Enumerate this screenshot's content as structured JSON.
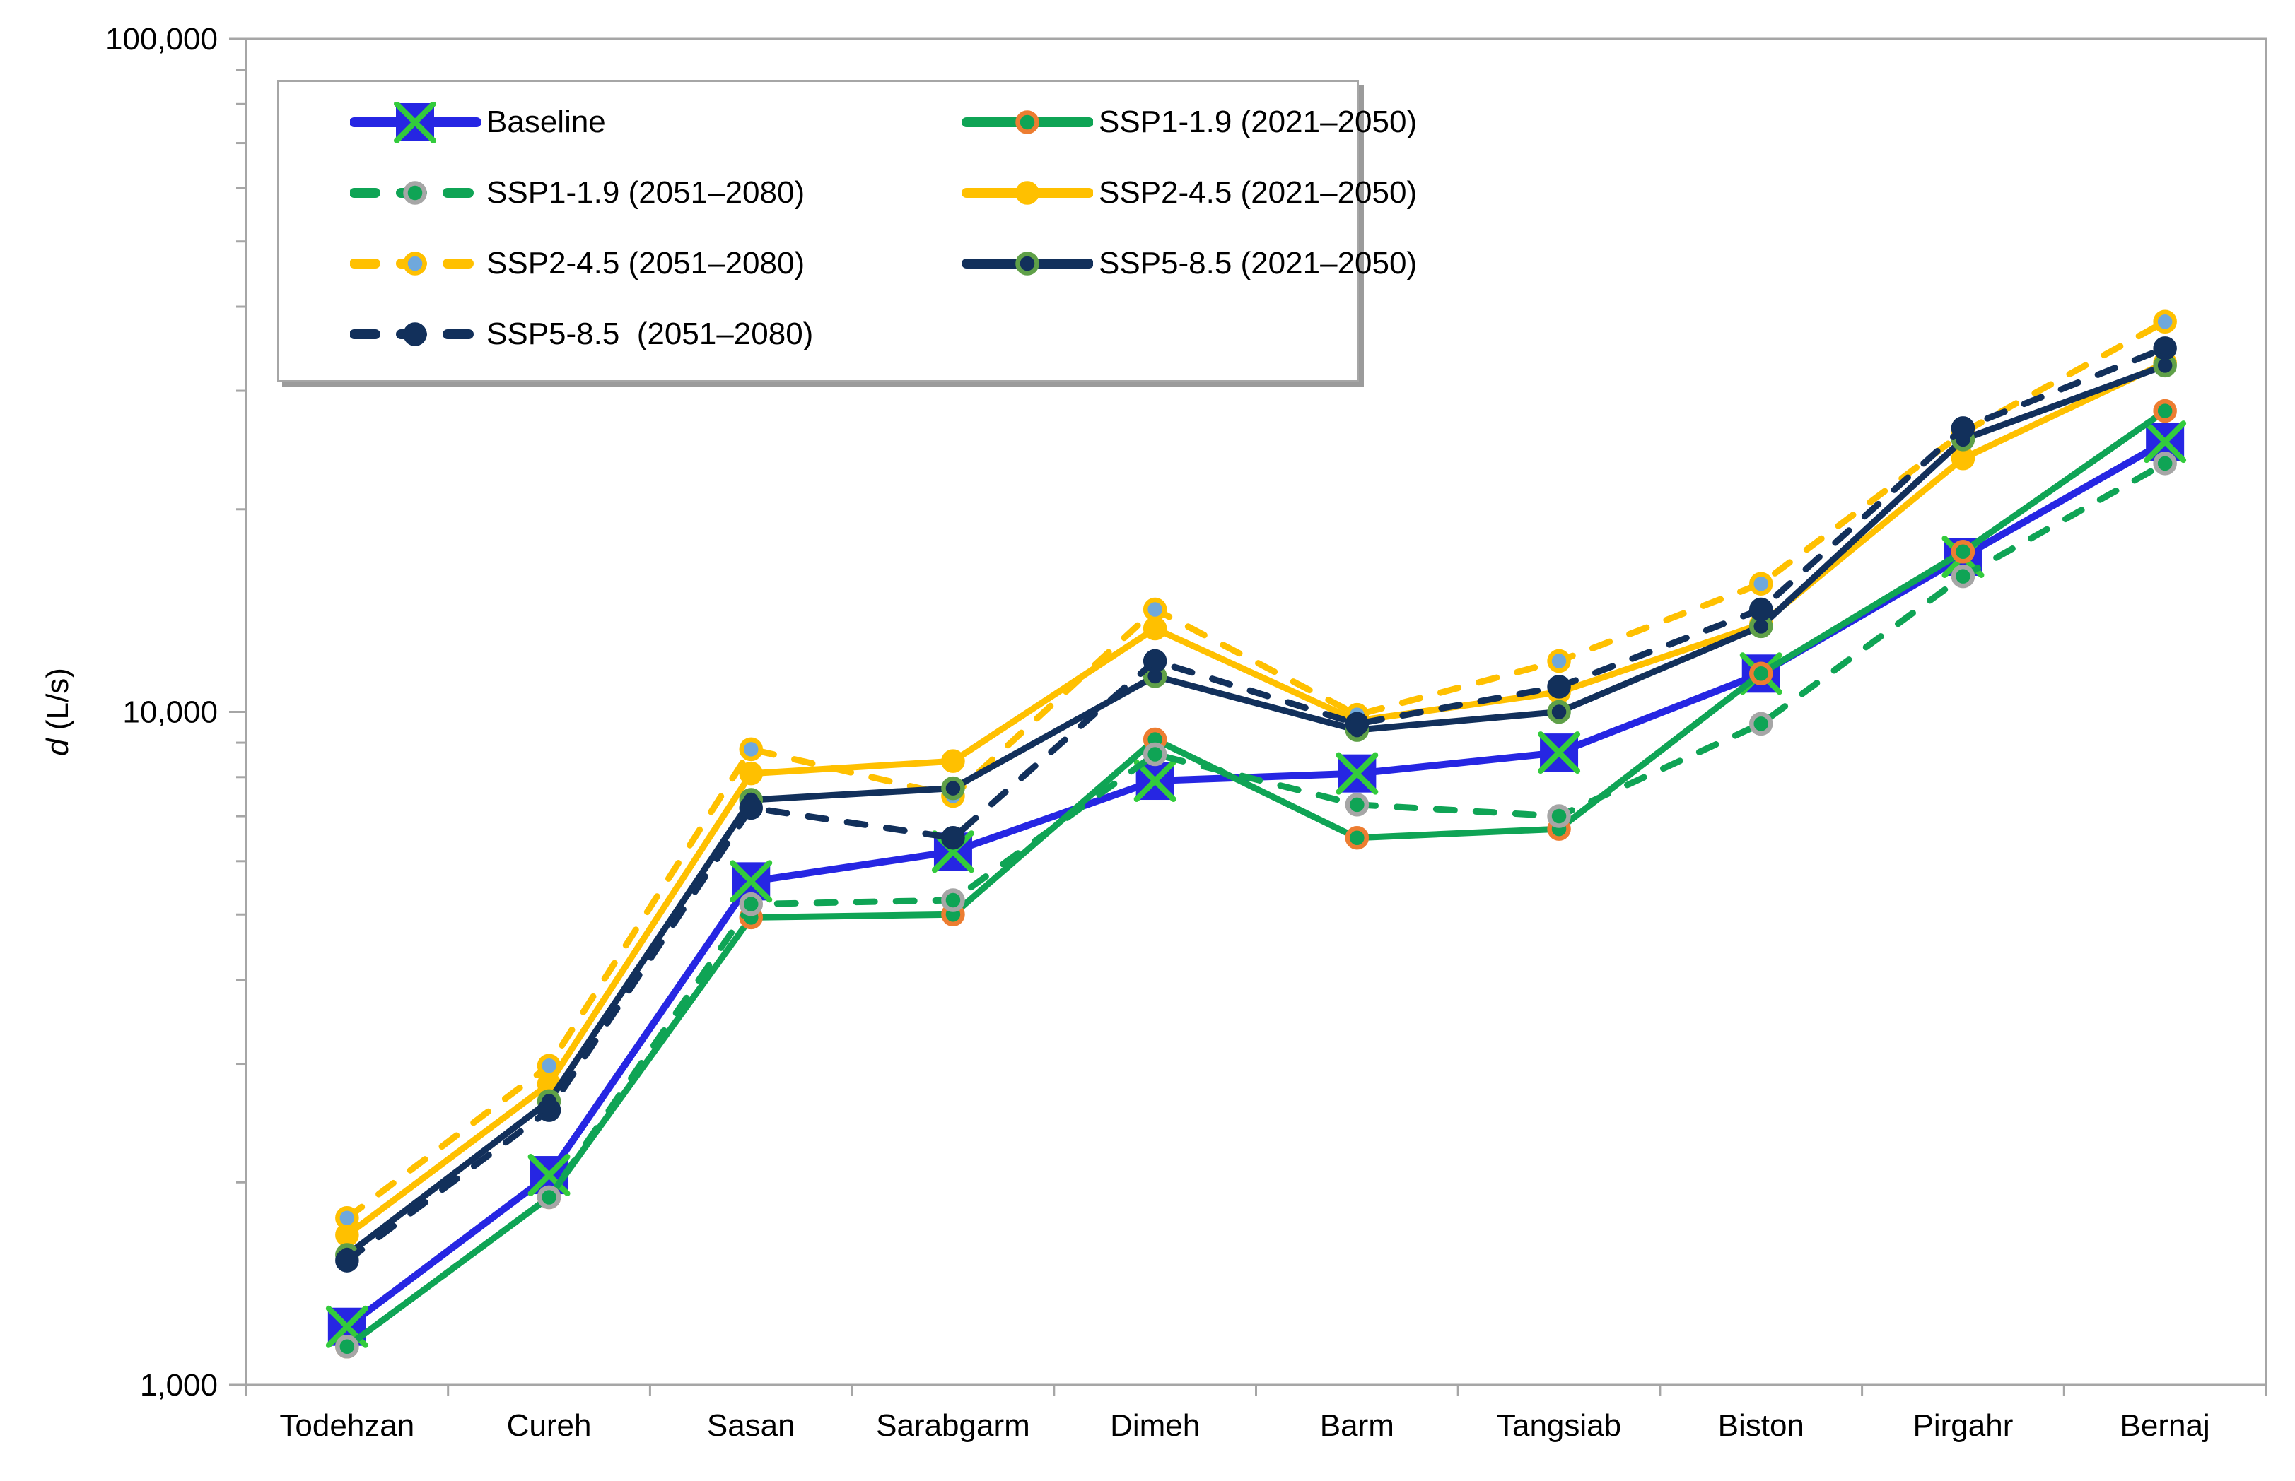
{
  "figure": {
    "background": "#ffffff",
    "axis_color": "#a6a6a6",
    "text_color": "#000000"
  },
  "y_axis": {
    "title_italic": "d",
    "title_rest": " (L/s)",
    "scale": "log",
    "min": 1000,
    "max": 100000,
    "tick_labels": [
      {
        "value": 1000,
        "label": "1,000"
      },
      {
        "value": 10000,
        "label": "10,000"
      },
      {
        "value": 100000,
        "label": "100,000"
      }
    ]
  },
  "x_axis": {
    "categories": [
      "Todehzan",
      "Cureh",
      "Sasan",
      "Sarabgarm",
      "Dimeh",
      "Barm",
      "Tangsiab",
      "Biston",
      "Pirgahr",
      "Bernaj"
    ]
  },
  "legend": {
    "position": "top-left",
    "columns": 2
  },
  "chart_data": {
    "type": "line",
    "x_type": "categorical",
    "title": "",
    "xlabel": "",
    "ylabel": "d (L/s)",
    "yscale": "log",
    "ylim": [
      1000,
      100000
    ],
    "grid": false,
    "legend_position": "top-left inside plot",
    "categories": [
      "Todehzan",
      "Cureh",
      "Sasan",
      "Sarabgarm",
      "Dimeh",
      "Barm",
      "Tangsiab",
      "Biston",
      "Pirgahr",
      "Bernaj"
    ],
    "series": [
      {
        "name": "Baseline",
        "color": "#2626e3",
        "dash": false,
        "marker": {
          "shape": "x-square",
          "fill": "#2626e3",
          "cross": "#33cb3c"
        },
        "values": [
          1220,
          2050,
          5600,
          6200,
          7900,
          8100,
          8700,
          11400,
          17000,
          25200
        ]
      },
      {
        "name": "SSP1-1.9 (2021–2050)",
        "color": "#0fa455",
        "dash": false,
        "marker": {
          "shape": "circle",
          "fill": "#0fa455",
          "ring": "#ed7d31"
        },
        "values": [
          1140,
          1900,
          4950,
          5000,
          9100,
          6500,
          6700,
          11400,
          17300,
          28000
        ]
      },
      {
        "name": "SSP1-1.9 (2051–2080)",
        "color": "#0fa455",
        "dash": true,
        "marker": {
          "shape": "circle",
          "fill": "#0fa455",
          "ring": "#a6a6a6"
        },
        "values": [
          1140,
          1900,
          5180,
          5250,
          8650,
          7280,
          7000,
          9600,
          15900,
          23400
        ]
      },
      {
        "name": "SSP2-4.5 (2021–2050)",
        "color": "#ffc000",
        "dash": false,
        "marker": {
          "shape": "circle",
          "fill": "#ffc000",
          "ring": "#ffc000"
        },
        "values": [
          1670,
          2800,
          8100,
          8450,
          13300,
          9700,
          10700,
          13500,
          23800,
          33000
        ]
      },
      {
        "name": "SSP2-4.5 (2051–2080)",
        "color": "#ffc000",
        "dash": true,
        "marker": {
          "shape": "circle",
          "fill": "#6fa8dc",
          "ring": "#ffc000"
        },
        "values": [
          1770,
          2980,
          8800,
          7500,
          14200,
          9900,
          11900,
          15500,
          26000,
          38000
        ]
      },
      {
        "name": "SSP5-8.5 (2021–2050)",
        "color": "#12305b",
        "dash": false,
        "marker": {
          "shape": "circle",
          "fill": "#12305b",
          "ring": "#5fa048"
        },
        "values": [
          1560,
          2640,
          7400,
          7700,
          11300,
          9400,
          10000,
          13400,
          25400,
          32700
        ]
      },
      {
        "name": "SSP5-8.5  (2051–2080)",
        "color": "#12305b",
        "dash": true,
        "marker": {
          "shape": "circle",
          "fill": "#12305b",
          "ring": "#12305b"
        },
        "values": [
          1530,
          2560,
          7200,
          6500,
          11900,
          9600,
          10900,
          14200,
          26400,
          34700
        ]
      }
    ]
  }
}
